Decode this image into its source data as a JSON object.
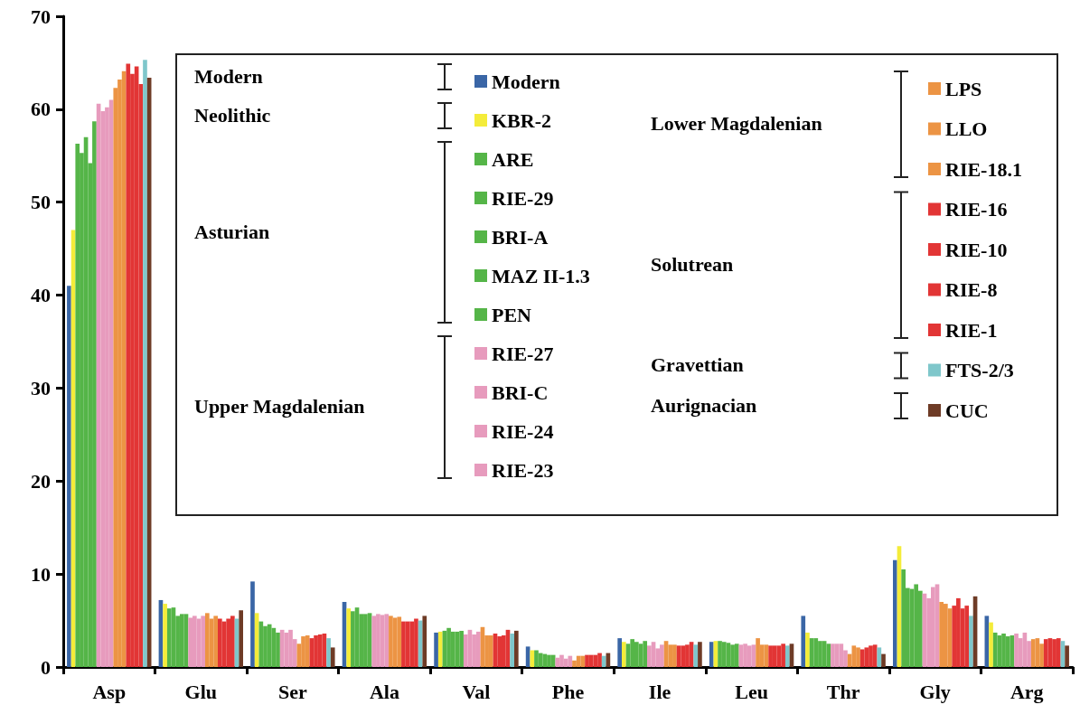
{
  "chart_data": {
    "type": "bar",
    "categories": [
      "Asp",
      "Glu",
      "Ser",
      "Ala",
      "Val",
      "Phe",
      "Ile",
      "Leu",
      "Thr",
      "Gly",
      "Arg"
    ],
    "ylim": [
      0,
      70
    ],
    "yticks": [
      0,
      10,
      20,
      30,
      40,
      50,
      60,
      70
    ],
    "grid": false,
    "legend": "top right",
    "annotations": [
      "Modern",
      "Neolithic",
      "Asturian",
      "Upper Magdalenian",
      "Lower Magdalenian",
      "Solutrean",
      "Gravettian",
      "Aurignacian"
    ],
    "series": [
      {
        "name": "Modern",
        "color": "#3a66a6",
        "values": [
          41.0,
          7.2,
          9.2,
          7.0,
          3.7,
          2.2,
          3.1,
          2.7,
          5.5,
          11.5,
          5.5
        ]
      },
      {
        "name": "KBR-2",
        "color": "#f4ec3a",
        "values": [
          47.0,
          6.8,
          5.8,
          6.3,
          3.8,
          1.8,
          2.7,
          2.8,
          3.7,
          13.0,
          4.8
        ]
      },
      {
        "name": "ARE",
        "color": "#55b548",
        "values": [
          56.3,
          6.3,
          4.9,
          6.0,
          3.9,
          1.8,
          2.5,
          2.8,
          3.1,
          10.5,
          3.7
        ]
      },
      {
        "name": "RIE-29",
        "color": "#55b548",
        "values": [
          55.3,
          6.4,
          4.4,
          6.4,
          4.2,
          1.5,
          3.0,
          2.7,
          3.1,
          8.5,
          3.4
        ]
      },
      {
        "name": "BRI-A",
        "color": "#55b548",
        "values": [
          57.0,
          5.5,
          4.6,
          5.7,
          3.8,
          1.4,
          2.7,
          2.6,
          2.8,
          8.4,
          3.6
        ]
      },
      {
        "name": "MAZ II-1.3",
        "color": "#55b548",
        "values": [
          54.2,
          5.7,
          4.2,
          5.7,
          3.8,
          1.3,
          2.5,
          2.4,
          2.8,
          8.9,
          3.3
        ]
      },
      {
        "name": "PEN",
        "color": "#55b548",
        "values": [
          58.7,
          5.7,
          3.7,
          5.8,
          3.9,
          1.3,
          2.8,
          2.5,
          2.5,
          8.2,
          3.4
        ]
      },
      {
        "name": "RIE-27",
        "color": "#e79bbd",
        "values": [
          60.6,
          5.3,
          4.0,
          5.5,
          3.5,
          1.0,
          2.3,
          2.4,
          2.5,
          7.9,
          3.6
        ]
      },
      {
        "name": "BRI-C",
        "color": "#e79bbd",
        "values": [
          59.8,
          5.5,
          3.7,
          5.7,
          4.0,
          1.3,
          2.7,
          2.5,
          2.5,
          7.4,
          3.1
        ]
      },
      {
        "name": "RIE-24",
        "color": "#e79bbd",
        "values": [
          60.2,
          5.2,
          4.0,
          5.6,
          3.5,
          0.9,
          2.0,
          2.3,
          2.5,
          8.6,
          3.7
        ]
      },
      {
        "name": "RIE-23",
        "color": "#e79bbd",
        "values": [
          61.0,
          5.5,
          3.0,
          5.7,
          3.8,
          1.2,
          2.4,
          2.4,
          1.8,
          8.9,
          2.8
        ]
      },
      {
        "name": "LPS",
        "color": "#ec9444",
        "values": [
          62.3,
          5.8,
          2.5,
          5.5,
          4.3,
          0.7,
          2.8,
          3.1,
          1.4,
          7.0,
          3.0
        ]
      },
      {
        "name": "LLO",
        "color": "#ec9444",
        "values": [
          63.2,
          5.2,
          3.3,
          5.3,
          3.4,
          1.2,
          2.4,
          2.4,
          2.3,
          6.8,
          3.1
        ]
      },
      {
        "name": "RIE-18.1",
        "color": "#ec9444",
        "values": [
          64.1,
          5.5,
          3.4,
          5.4,
          3.4,
          1.2,
          2.4,
          2.4,
          2.1,
          6.3,
          2.5
        ]
      },
      {
        "name": "RIE-16",
        "color": "#e23535",
        "values": [
          64.9,
          5.2,
          3.1,
          4.9,
          3.6,
          1.3,
          2.3,
          2.3,
          1.9,
          6.6,
          3.0
        ]
      },
      {
        "name": "RIE-10",
        "color": "#e23535",
        "values": [
          63.8,
          4.9,
          3.4,
          4.9,
          3.3,
          1.3,
          2.3,
          2.3,
          2.1,
          7.4,
          3.1
        ]
      },
      {
        "name": "RIE-8",
        "color": "#e23535",
        "values": [
          64.6,
          5.2,
          3.5,
          4.9,
          3.4,
          1.3,
          2.4,
          2.3,
          2.3,
          6.3,
          3.0
        ]
      },
      {
        "name": "RIE-1",
        "color": "#e23535",
        "values": [
          62.7,
          5.5,
          3.6,
          5.2,
          4.0,
          1.5,
          2.7,
          2.5,
          2.4,
          6.6,
          3.1
        ]
      },
      {
        "name": "FTS-2/3",
        "color": "#7fc7cb",
        "values": [
          65.3,
          5.2,
          3.1,
          5.0,
          3.6,
          1.2,
          2.4,
          2.3,
          2.1,
          5.5,
          2.8
        ]
      },
      {
        "name": "CUC",
        "color": "#6e3b26",
        "values": [
          63.4,
          6.1,
          2.1,
          5.5,
          3.9,
          1.5,
          2.7,
          2.5,
          1.4,
          7.6,
          2.3
        ]
      }
    ]
  }
}
